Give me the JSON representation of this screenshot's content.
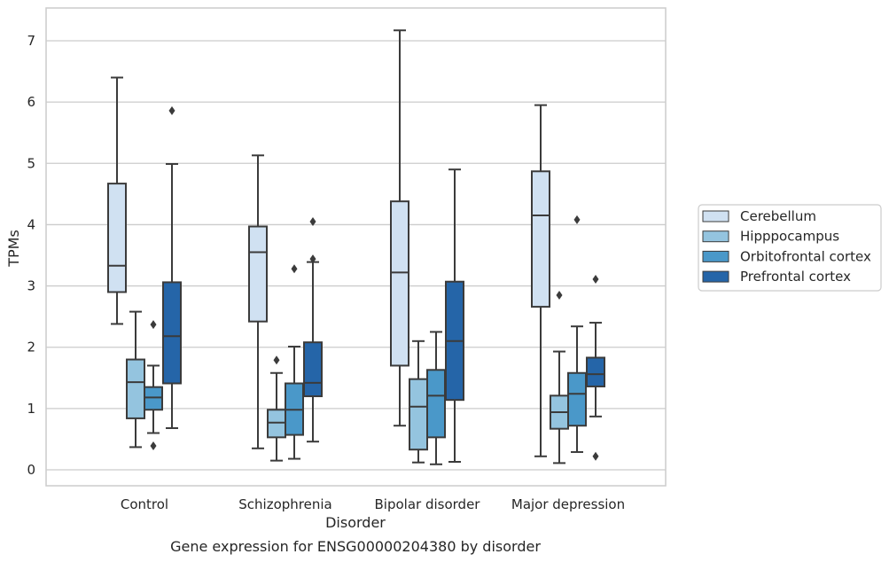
{
  "chart_data": {
    "type": "box",
    "caption": "Gene expression for ENSG00000204380 by disorder",
    "xlabel": "Disorder",
    "ylabel": "TPMs",
    "ylim": [
      -0.25,
      7.55
    ],
    "yticks": [
      0,
      1,
      2,
      3,
      4,
      5,
      6,
      7
    ],
    "grid": "horizontal",
    "legend_position": "right",
    "categories": [
      "Control",
      "Schizophrenia",
      "Bipolar disorder",
      "Major depression"
    ],
    "series": [
      {
        "name": "Cerebellum",
        "color": "#d0e1f2",
        "boxes": [
          {
            "min": 2.38,
            "q1": 2.9,
            "median": 3.33,
            "q3": 4.67,
            "max": 6.4,
            "outliers": []
          },
          {
            "min": 0.35,
            "q1": 2.42,
            "median": 3.55,
            "q3": 3.97,
            "max": 5.13,
            "outliers": []
          },
          {
            "min": 0.72,
            "q1": 1.7,
            "median": 3.22,
            "q3": 4.38,
            "max": 7.17,
            "outliers": []
          },
          {
            "min": 0.22,
            "q1": 2.66,
            "median": 4.15,
            "q3": 4.87,
            "max": 5.95,
            "outliers": []
          }
        ]
      },
      {
        "name": "Hipppocampus",
        "color": "#94c4df",
        "boxes": [
          {
            "min": 0.37,
            "q1": 0.84,
            "median": 1.43,
            "q3": 1.8,
            "max": 2.58,
            "outliers": []
          },
          {
            "min": 0.15,
            "q1": 0.53,
            "median": 0.77,
            "q3": 0.98,
            "max": 1.58,
            "outliers": [
              1.79
            ]
          },
          {
            "min": 0.12,
            "q1": 0.33,
            "median": 1.03,
            "q3": 1.48,
            "max": 2.1,
            "outliers": []
          },
          {
            "min": 0.11,
            "q1": 0.67,
            "median": 0.94,
            "q3": 1.21,
            "max": 1.93,
            "outliers": [
              2.85
            ]
          }
        ]
      },
      {
        "name": "Orbitofrontal cortex",
        "color": "#4a98c9",
        "boxes": [
          {
            "min": 0.6,
            "q1": 0.98,
            "median": 1.18,
            "q3": 1.35,
            "max": 1.7,
            "outliers": [
              0.39,
              2.37
            ]
          },
          {
            "min": 0.18,
            "q1": 0.57,
            "median": 0.98,
            "q3": 1.41,
            "max": 2.01,
            "outliers": [
              3.28
            ]
          },
          {
            "min": 0.09,
            "q1": 0.53,
            "median": 1.21,
            "q3": 1.63,
            "max": 2.25,
            "outliers": []
          },
          {
            "min": 0.29,
            "q1": 0.72,
            "median": 1.24,
            "q3": 1.58,
            "max": 2.34,
            "outliers": [
              4.08
            ]
          }
        ]
      },
      {
        "name": "Prefrontal cortex",
        "color": "#2565a8",
        "boxes": [
          {
            "min": 0.68,
            "q1": 1.41,
            "median": 2.18,
            "q3": 3.06,
            "max": 4.99,
            "outliers": [
              5.86
            ]
          },
          {
            "min": 0.46,
            "q1": 1.2,
            "median": 1.42,
            "q3": 2.08,
            "max": 3.39,
            "outliers": [
              3.44,
              4.05
            ]
          },
          {
            "min": 0.13,
            "q1": 1.14,
            "median": 2.1,
            "q3": 3.07,
            "max": 4.9,
            "outliers": []
          },
          {
            "min": 0.87,
            "q1": 1.36,
            "median": 1.56,
            "q3": 1.83,
            "max": 2.4,
            "outliers": [
              0.22,
              3.11
            ]
          }
        ]
      }
    ]
  }
}
